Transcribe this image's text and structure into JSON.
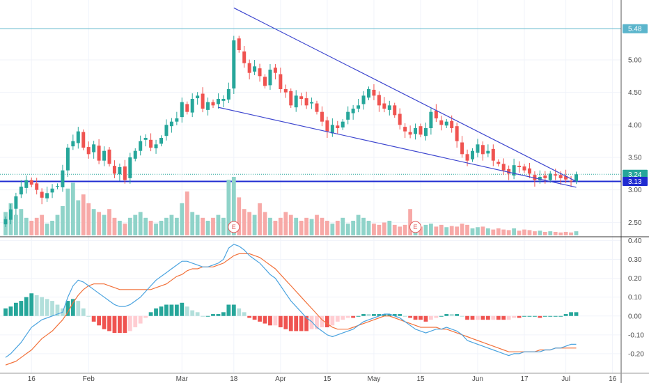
{
  "chart_data": {
    "type": "candlestick",
    "price_axis": {
      "ticks": [
        "5.00",
        "4.50",
        "4.00",
        "3.50",
        "3.00",
        "2.50"
      ],
      "tick_values": [
        5.0,
        4.5,
        4.0,
        3.5,
        3.0,
        2.5
      ],
      "range": [
        2.3,
        5.9
      ]
    },
    "indicator_axis": {
      "ticks": [
        "0.40",
        "0.30",
        "0.20",
        "0.10",
        "0.00",
        "-0.10",
        "-0.20"
      ],
      "tick_values": [
        0.4,
        0.3,
        0.2,
        0.1,
        0.0,
        -0.1,
        -0.2
      ],
      "range": [
        -0.3,
        0.42
      ]
    },
    "time_axis": {
      "labels": [
        "16",
        "Feb",
        "Mar",
        "18",
        "Apr",
        "15",
        "May",
        "15",
        "Jun",
        "17",
        "Jul",
        "16"
      ],
      "bar_index": [
        5,
        16,
        34,
        44,
        53,
        62,
        71,
        80,
        91,
        100,
        108,
        117
      ]
    },
    "price_badges": [
      {
        "label": "5.48",
        "value": 5.48,
        "color": "#5bb5cc"
      },
      {
        "label": "3.24",
        "value": 3.24,
        "color": "#26a69a"
      },
      {
        "label": "3.13",
        "value": 3.13,
        "color": "#1f2bd1"
      }
    ],
    "horizontal_lines": [
      {
        "value": 5.48,
        "color": "#5bb5cc",
        "style": "solid"
      },
      {
        "value": 3.24,
        "color": "#26a69a",
        "style": "dotted"
      },
      {
        "value": 3.13,
        "color": "#1f2bd1",
        "style": "solid"
      }
    ],
    "trendlines": [
      {
        "from": {
          "bar": 44,
          "price": 5.8
        },
        "to": {
          "bar": 110,
          "price": 3.13
        },
        "color": "#3d46cf"
      },
      {
        "from": {
          "bar": 41,
          "price": 4.27
        },
        "to": {
          "bar": 110,
          "price": 3.04
        },
        "color": "#3d46cf"
      }
    ],
    "earnings_markers": [
      {
        "label": "E",
        "bar": 44
      },
      {
        "label": "E",
        "bar": 79
      }
    ],
    "colors": {
      "up": "#26a69a",
      "down": "#ef5350",
      "vol_up": "#8fd3c9",
      "vol_down": "#f7a9a7",
      "macd": "#4aa3df",
      "signal": "#f2713a",
      "hist_up_strong": "#26a69a",
      "hist_up_weak": "#b2dfdb",
      "hist_down_strong": "#ef5350",
      "hist_down_weak": "#ffcdd2"
    },
    "close": [
      2.55,
      2.7,
      2.9,
      3.05,
      3.15,
      3.08,
      3.0,
      2.88,
      2.95,
      3.02,
      3.06,
      3.3,
      3.65,
      3.75,
      3.9,
      3.65,
      3.55,
      3.7,
      3.45,
      3.6,
      3.4,
      3.25,
      3.35,
      3.15,
      3.5,
      3.6,
      3.75,
      3.8,
      3.65,
      3.7,
      3.8,
      4.0,
      4.05,
      4.1,
      4.35,
      4.2,
      4.4,
      4.45,
      4.25,
      4.35,
      4.3,
      4.4,
      4.4,
      4.55,
      5.3,
      5.15,
      4.95,
      4.8,
      4.9,
      4.75,
      4.6,
      4.85,
      4.8,
      4.55,
      4.5,
      4.3,
      4.45,
      4.4,
      4.3,
      4.35,
      4.2,
      4.05,
      3.9,
      4.0,
      3.95,
      4.05,
      4.2,
      4.25,
      4.3,
      4.45,
      4.55,
      4.45,
      4.3,
      4.25,
      4.3,
      4.15,
      4.0,
      3.9,
      3.85,
      3.95,
      3.85,
      3.95,
      4.2,
      4.1,
      4.0,
      4.05,
      3.95,
      3.75,
      3.55,
      3.45,
      3.6,
      3.7,
      3.55,
      3.6,
      3.45,
      3.4,
      3.3,
      3.25,
      3.38,
      3.35,
      3.3,
      3.25,
      3.15,
      3.2,
      3.18,
      3.25,
      3.22,
      3.18,
      3.16,
      3.13,
      3.24
    ],
    "volume": [
      0.4,
      0.55,
      0.35,
      0.45,
      0.3,
      0.25,
      0.3,
      0.35,
      0.2,
      0.25,
      0.35,
      0.5,
      0.8,
      0.9,
      0.6,
      0.7,
      0.55,
      0.45,
      0.4,
      0.35,
      0.45,
      0.3,
      0.25,
      0.2,
      0.3,
      0.35,
      0.4,
      0.3,
      0.25,
      0.2,
      0.25,
      0.3,
      0.35,
      0.3,
      0.55,
      0.75,
      0.4,
      0.35,
      0.3,
      0.25,
      0.3,
      0.35,
      0.3,
      0.95,
      1.0,
      0.65,
      0.45,
      0.4,
      0.35,
      0.55,
      0.4,
      0.3,
      0.25,
      0.3,
      0.4,
      0.35,
      0.3,
      0.25,
      0.3,
      0.28,
      0.35,
      0.3,
      0.25,
      0.2,
      0.25,
      0.3,
      0.2,
      0.25,
      0.35,
      0.3,
      0.25,
      0.2,
      0.18,
      0.22,
      0.25,
      0.18,
      0.15,
      0.18,
      0.45,
      0.2,
      0.15,
      0.18,
      0.2,
      0.15,
      0.18,
      0.14,
      0.16,
      0.15,
      0.2,
      0.18,
      0.12,
      0.14,
      0.15,
      0.12,
      0.1,
      0.12,
      0.1,
      0.09,
      0.12,
      0.08,
      0.1,
      0.09,
      0.07,
      0.08,
      0.06,
      0.07,
      0.06,
      0.05,
      0.06,
      0.05,
      0.07
    ],
    "macd": [
      -0.22,
      -0.2,
      -0.17,
      -0.14,
      -0.1,
      -0.06,
      -0.04,
      -0.02,
      -0.01,
      0.0,
      0.01,
      0.02,
      0.1,
      0.16,
      0.19,
      0.18,
      0.16,
      0.14,
      0.12,
      0.1,
      0.08,
      0.06,
      0.05,
      0.05,
      0.06,
      0.08,
      0.1,
      0.13,
      0.16,
      0.19,
      0.21,
      0.23,
      0.25,
      0.27,
      0.29,
      0.29,
      0.28,
      0.27,
      0.26,
      0.26,
      0.27,
      0.28,
      0.3,
      0.36,
      0.38,
      0.37,
      0.35,
      0.32,
      0.3,
      0.28,
      0.25,
      0.22,
      0.2,
      0.16,
      0.12,
      0.08,
      0.05,
      0.02,
      -0.01,
      -0.03,
      -0.06,
      -0.08,
      -0.1,
      -0.11,
      -0.1,
      -0.09,
      -0.08,
      -0.07,
      -0.05,
      -0.03,
      -0.02,
      -0.01,
      0.0,
      0.01,
      0.01,
      0.0,
      -0.01,
      -0.03,
      -0.05,
      -0.07,
      -0.08,
      -0.09,
      -0.08,
      -0.07,
      -0.07,
      -0.06,
      -0.07,
      -0.08,
      -0.1,
      -0.13,
      -0.14,
      -0.15,
      -0.16,
      -0.17,
      -0.18,
      -0.19,
      -0.2,
      -0.21,
      -0.2,
      -0.2,
      -0.19,
      -0.19,
      -0.19,
      -0.19,
      -0.18,
      -0.18,
      -0.17,
      -0.17,
      -0.16,
      -0.15,
      -0.15
    ],
    "signal": [
      -0.26,
      -0.25,
      -0.24,
      -0.22,
      -0.2,
      -0.18,
      -0.15,
      -0.12,
      -0.1,
      -0.08,
      -0.05,
      -0.02,
      0.02,
      0.07,
      0.11,
      0.14,
      0.16,
      0.17,
      0.17,
      0.17,
      0.16,
      0.15,
      0.14,
      0.14,
      0.14,
      0.14,
      0.14,
      0.14,
      0.14,
      0.15,
      0.16,
      0.17,
      0.19,
      0.21,
      0.22,
      0.24,
      0.25,
      0.25,
      0.26,
      0.26,
      0.26,
      0.27,
      0.28,
      0.3,
      0.32,
      0.33,
      0.33,
      0.33,
      0.32,
      0.31,
      0.29,
      0.27,
      0.25,
      0.22,
      0.19,
      0.16,
      0.13,
      0.1,
      0.07,
      0.04,
      0.01,
      -0.02,
      -0.04,
      -0.06,
      -0.07,
      -0.07,
      -0.07,
      -0.06,
      -0.05,
      -0.04,
      -0.03,
      -0.02,
      -0.01,
      0.0,
      0.0,
      -0.01,
      -0.02,
      -0.03,
      -0.04,
      -0.05,
      -0.06,
      -0.06,
      -0.06,
      -0.06,
      -0.07,
      -0.07,
      -0.08,
      -0.09,
      -0.1,
      -0.11,
      -0.12,
      -0.13,
      -0.14,
      -0.15,
      -0.16,
      -0.17,
      -0.18,
      -0.19,
      -0.19,
      -0.19,
      -0.19,
      -0.19,
      -0.19,
      -0.18,
      -0.18,
      -0.18,
      -0.17,
      -0.17,
      -0.17,
      -0.17,
      -0.17
    ]
  }
}
